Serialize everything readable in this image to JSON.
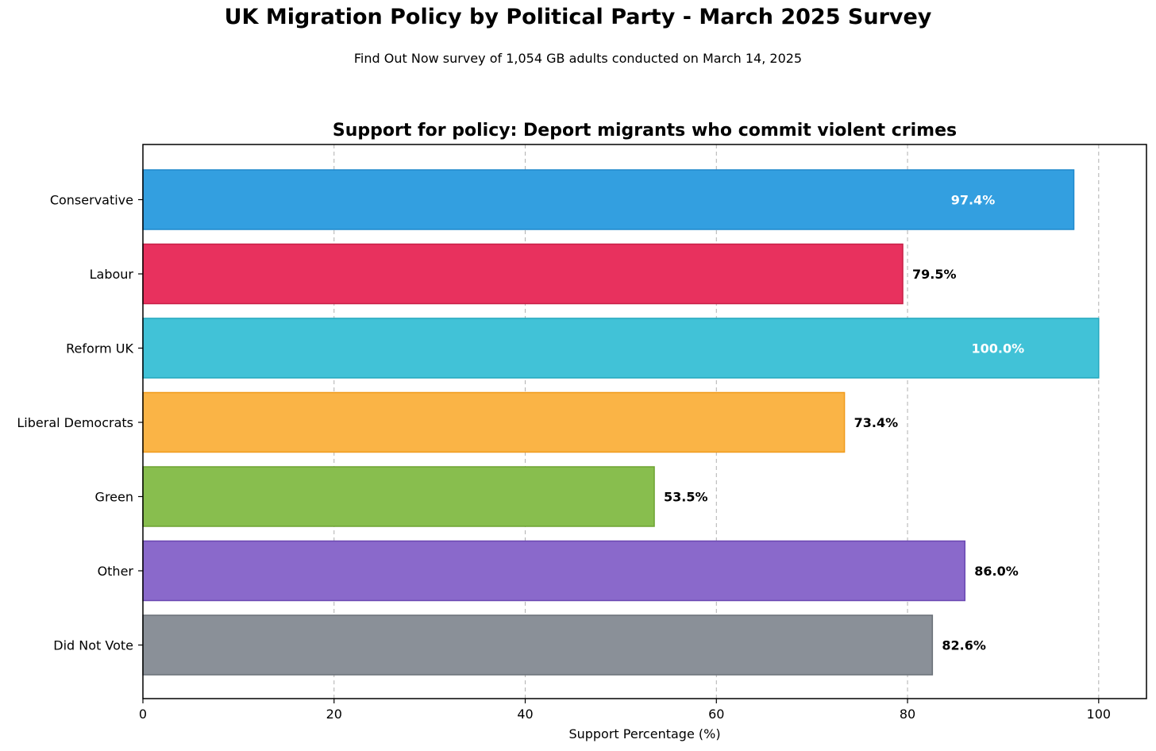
{
  "header": {
    "title": "UK Migration Policy by Political Party - March 2025 Survey",
    "subtitle": "Find Out Now survey of 1,054 GB adults conducted on March 14, 2025"
  },
  "chart_data": {
    "type": "bar",
    "orientation": "horizontal",
    "title": "Support for policy: Deport migrants who commit violent crimes",
    "xlabel": "Support Percentage (%)",
    "ylabel": "",
    "xlim": [
      0,
      105
    ],
    "xticks": [
      0,
      20,
      40,
      60,
      80,
      100
    ],
    "grid": "x-dashed",
    "categories": [
      "Conservative",
      "Labour",
      "Reform UK",
      "Liberal Democrats",
      "Green",
      "Other",
      "Did Not Vote"
    ],
    "values": [
      97.4,
      79.5,
      100.0,
      73.4,
      53.5,
      86.0,
      82.6
    ],
    "data_labels": [
      "97.4%",
      "79.5%",
      "100.0%",
      "73.4%",
      "53.5%",
      "86.0%",
      "82.6%"
    ],
    "label_inside": [
      true,
      false,
      true,
      false,
      false,
      false,
      false
    ],
    "colors": [
      "#339FE0",
      "#E8315E",
      "#41C2D7",
      "#FAB446",
      "#88BE4E",
      "#8A69CB",
      "#8A9098"
    ],
    "edge_colors": [
      "#1F88CC",
      "#C81E46",
      "#22A8BE",
      "#F09A1A",
      "#6EA432",
      "#6A48B2",
      "#6A7078"
    ],
    "inside_label_color": "#FFFFFF",
    "outside_label_color": "#000000"
  }
}
